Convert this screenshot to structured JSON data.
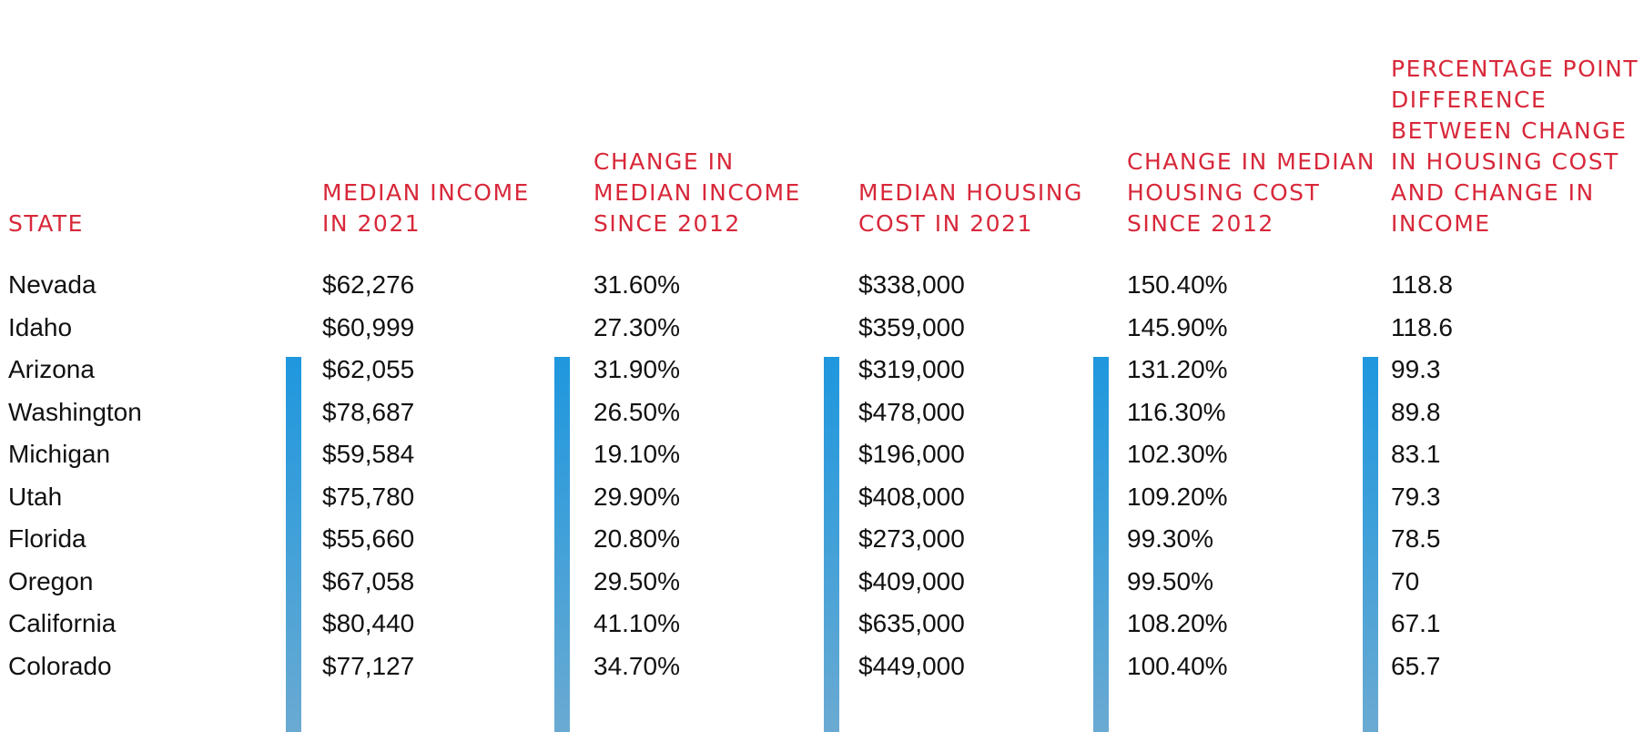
{
  "columns": [
    {
      "key": "state",
      "label": "STATE"
    },
    {
      "key": "median_income_2021",
      "label": "MEDIAN INCOME IN 2021"
    },
    {
      "key": "income_change",
      "label": "CHANGE IN MEDIAN INCOME SINCE 2012"
    },
    {
      "key": "median_housing_2021",
      "label": "MEDIAN HOUSING COST IN 2021"
    },
    {
      "key": "housing_change",
      "label": "CHANGE IN MEDIAN HOUSING COST SINCE 2012"
    },
    {
      "key": "point_difference",
      "label": "PERCENTAGE POINT DIFFERENCE BETWEEN CHANGE IN HOUSING COST AND CHANGE IN INCOME"
    }
  ],
  "rows": [
    [
      "Nevada",
      "$62,276",
      "31.60%",
      "$338,000",
      "150.40%",
      "118.8"
    ],
    [
      "Idaho",
      "$60,999",
      "27.30%",
      "$359,000",
      "145.90%",
      "118.6"
    ],
    [
      "Arizona",
      "$62,055",
      "31.90%",
      "$319,000",
      "131.20%",
      "99.3"
    ],
    [
      "Washington",
      "$78,687",
      "26.50%",
      "$478,000",
      "116.30%",
      "89.8"
    ],
    [
      "Michigan",
      "$59,584",
      "19.10%",
      "$196,000",
      "102.30%",
      "83.1"
    ],
    [
      "Utah",
      "$75,780",
      "29.90%",
      "$408,000",
      "109.20%",
      "79.3"
    ],
    [
      "Florida",
      "$55,660",
      "20.80%",
      "$273,000",
      "99.30%",
      "78.5"
    ],
    [
      "Oregon",
      "$67,058",
      "29.50%",
      "$409,000",
      "99.50%",
      "70"
    ],
    [
      "California",
      "$80,440",
      "41.10%",
      "$635,000",
      "108.20%",
      "67.1"
    ],
    [
      "Colorado",
      "$77,127",
      "34.70%",
      "$449,000",
      "100.40%",
      "65.7"
    ]
  ],
  "colors": {
    "header_text": "#d8283a",
    "body_text": "#111111",
    "divider_bar": "#2a9ad9"
  }
}
